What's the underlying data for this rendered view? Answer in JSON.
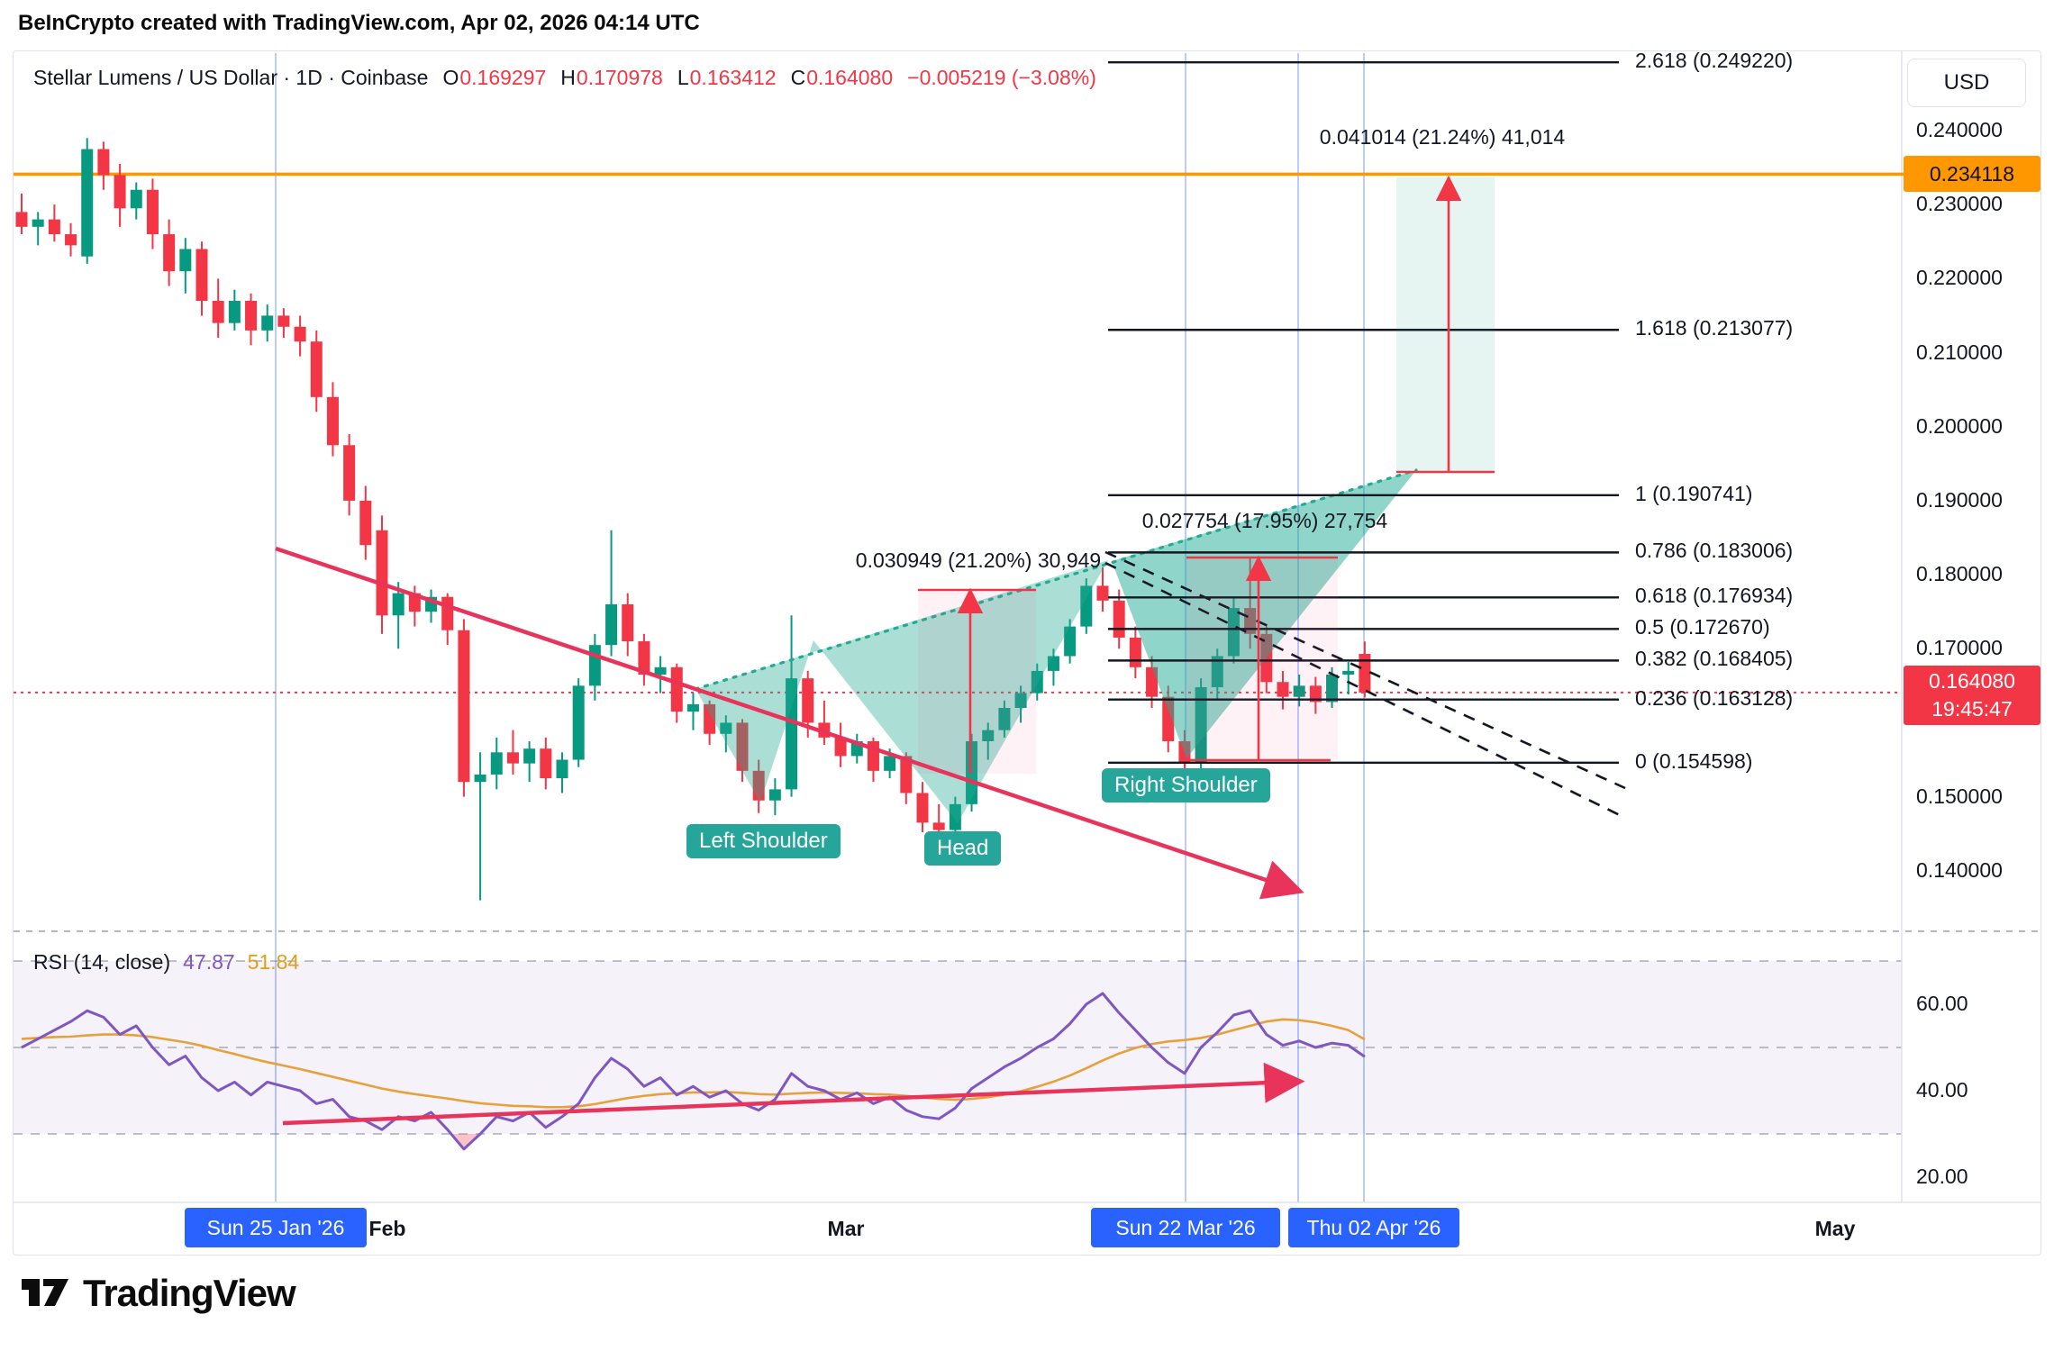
{
  "attribution": "BeInCrypto created with TradingView.com, Apr 02, 2026 04:14 UTC",
  "legend": {
    "title": "Stellar Lumens / US Dollar · 1D · Coinbase",
    "ohlc": [
      {
        "label": "O",
        "value": "0.169297"
      },
      {
        "label": "H",
        "value": "0.170978"
      },
      {
        "label": "L",
        "value": "0.163412"
      },
      {
        "label": "C",
        "value": "0.164080"
      }
    ],
    "change": "−0.005219 (−3.08%)"
  },
  "currency_button": "USD",
  "pattern_labels": {
    "left": "Left Shoulder",
    "head": "Head",
    "right": "Right Shoulder"
  },
  "annotations": {
    "projection": "0.041014 (21.24%) 41,014",
    "shoulder": "0.027754 (17.95%) 27,754",
    "head": "0.030949 (21.20%) 30,949"
  },
  "price_tags": {
    "alert": "0.234118",
    "last": "0.164080",
    "countdown": "19:45:47"
  },
  "rsi_legend": {
    "name": "RSI (14, close)",
    "value": "47.87",
    "ma": "51.84"
  },
  "time_axis": {
    "chips": [
      "Sun 25 Jan '26",
      "Sun 22 Mar '26",
      "Thu 02 Apr '26"
    ],
    "months": [
      "Feb",
      "Mar",
      "May"
    ]
  },
  "footer": {
    "brand": "TradingView"
  },
  "colors": {
    "up": "#089981",
    "down": "#f23645",
    "teal": "#22ab94",
    "orange": "#ff9800",
    "blue_chip": "#2962ff",
    "rsi": "#7e57c2",
    "rsi_ma": "#e7a13a",
    "arrow": "#e8335a"
  },
  "chart_data": {
    "type": "candlestick+rsi",
    "title": "Stellar Lumens / US Dollar · 1D · Coinbase",
    "price_ticks": [
      {
        "label": "0.240000",
        "price": 0.24
      },
      {
        "label": "0.230000",
        "price": 0.23
      },
      {
        "label": "0.220000",
        "price": 0.22
      },
      {
        "label": "0.210000",
        "price": 0.21
      },
      {
        "label": "0.200000",
        "price": 0.2
      },
      {
        "label": "0.190000",
        "price": 0.19
      },
      {
        "label": "0.180000",
        "price": 0.18
      },
      {
        "label": "0.170000",
        "price": 0.17
      },
      {
        "label": "0.150000",
        "price": 0.15
      },
      {
        "label": "0.140000",
        "price": 0.14
      }
    ],
    "fib_levels": [
      {
        "label": "2.618 (0.249220)",
        "price": 0.24922
      },
      {
        "label": "1.618 (0.213077)",
        "price": 0.213077
      },
      {
        "label": "1 (0.190741)",
        "price": 0.190741
      },
      {
        "label": "0.786 (0.183006)",
        "price": 0.183006
      },
      {
        "label": "0.618 (0.176934)",
        "price": 0.176934
      },
      {
        "label": "0.5 (0.172670)",
        "price": 0.17267
      },
      {
        "label": "0.382 (0.168405)",
        "price": 0.168405
      },
      {
        "label": "0.236 (0.163128)",
        "price": 0.163128
      },
      {
        "label": "0 (0.154598)",
        "price": 0.154598
      }
    ],
    "alert_price": 0.234118,
    "last_price": 0.16408,
    "candles": [
      [
        0.229,
        0.2315,
        0.226,
        0.227
      ],
      [
        0.227,
        0.229,
        0.2245,
        0.228
      ],
      [
        0.228,
        0.23,
        0.225,
        0.226
      ],
      [
        0.226,
        0.2275,
        0.223,
        0.2245
      ],
      [
        0.223,
        0.239,
        0.222,
        0.2375
      ],
      [
        0.2375,
        0.2385,
        0.232,
        0.234
      ],
      [
        0.234,
        0.2355,
        0.227,
        0.2295
      ],
      [
        0.2295,
        0.233,
        0.228,
        0.232
      ],
      [
        0.232,
        0.2335,
        0.224,
        0.226
      ],
      [
        0.226,
        0.228,
        0.219,
        0.221
      ],
      [
        0.221,
        0.2255,
        0.218,
        0.224
      ],
      [
        0.224,
        0.225,
        0.215,
        0.217
      ],
      [
        0.217,
        0.22,
        0.212,
        0.214
      ],
      [
        0.214,
        0.2185,
        0.213,
        0.217
      ],
      [
        0.217,
        0.218,
        0.211,
        0.213
      ],
      [
        0.213,
        0.2165,
        0.2115,
        0.215
      ],
      [
        0.215,
        0.216,
        0.212,
        0.2135
      ],
      [
        0.2135,
        0.215,
        0.2095,
        0.2115
      ],
      [
        0.2115,
        0.213,
        0.202,
        0.204
      ],
      [
        0.204,
        0.206,
        0.196,
        0.1975
      ],
      [
        0.1975,
        0.199,
        0.188,
        0.19
      ],
      [
        0.19,
        0.192,
        0.182,
        0.184
      ],
      [
        0.186,
        0.188,
        0.172,
        0.1745
      ],
      [
        0.1745,
        0.179,
        0.17,
        0.1775
      ],
      [
        0.1775,
        0.1785,
        0.173,
        0.175
      ],
      [
        0.175,
        0.178,
        0.1735,
        0.177
      ],
      [
        0.177,
        0.1775,
        0.1705,
        0.1725
      ],
      [
        0.1725,
        0.174,
        0.15,
        0.152
      ],
      [
        0.152,
        0.156,
        0.136,
        0.153
      ],
      [
        0.153,
        0.158,
        0.151,
        0.156
      ],
      [
        0.156,
        0.159,
        0.153,
        0.1545
      ],
      [
        0.1545,
        0.1575,
        0.152,
        0.1565
      ],
      [
        0.1565,
        0.158,
        0.151,
        0.1525
      ],
      [
        0.1525,
        0.156,
        0.1505,
        0.155
      ],
      [
        0.155,
        0.166,
        0.154,
        0.165
      ],
      [
        0.165,
        0.172,
        0.163,
        0.1705
      ],
      [
        0.1705,
        0.186,
        0.169,
        0.176
      ],
      [
        0.176,
        0.1775,
        0.169,
        0.171
      ],
      [
        0.171,
        0.172,
        0.165,
        0.1665
      ],
      [
        0.1665,
        0.169,
        0.164,
        0.1675
      ],
      [
        0.1675,
        0.168,
        0.16,
        0.1615
      ],
      [
        0.1615,
        0.164,
        0.159,
        0.1625
      ],
      [
        0.1625,
        0.163,
        0.157,
        0.1585
      ],
      [
        0.1585,
        0.161,
        0.156,
        0.16
      ],
      [
        0.16,
        0.1605,
        0.152,
        0.1535
      ],
      [
        0.1535,
        0.155,
        0.1478,
        0.1495
      ],
      [
        0.1495,
        0.1525,
        0.1475,
        0.151
      ],
      [
        0.151,
        0.1745,
        0.15,
        0.166
      ],
      [
        0.166,
        0.167,
        0.158,
        0.16
      ],
      [
        0.16,
        0.163,
        0.157,
        0.158
      ],
      [
        0.158,
        0.16,
        0.154,
        0.1555
      ],
      [
        0.1555,
        0.1585,
        0.1545,
        0.1575
      ],
      [
        0.1575,
        0.158,
        0.152,
        0.1535
      ],
      [
        0.1535,
        0.1565,
        0.1525,
        0.1555
      ],
      [
        0.1555,
        0.156,
        0.149,
        0.1505
      ],
      [
        0.1505,
        0.152,
        0.1452,
        0.1465
      ],
      [
        0.1465,
        0.149,
        0.1445,
        0.1455
      ],
      [
        0.1455,
        0.15,
        0.1448,
        0.149
      ],
      [
        0.149,
        0.1585,
        0.148,
        0.1575
      ],
      [
        0.1575,
        0.16,
        0.155,
        0.159
      ],
      [
        0.159,
        0.163,
        0.158,
        0.162
      ],
      [
        0.162,
        0.165,
        0.16,
        0.164
      ],
      [
        0.164,
        0.168,
        0.163,
        0.167
      ],
      [
        0.167,
        0.17,
        0.165,
        0.169
      ],
      [
        0.169,
        0.174,
        0.168,
        0.173
      ],
      [
        0.173,
        0.1795,
        0.172,
        0.1785
      ],
      [
        0.1785,
        0.181,
        0.175,
        0.1765
      ],
      [
        0.1765,
        0.178,
        0.17,
        0.1715
      ],
      [
        0.1715,
        0.173,
        0.166,
        0.1675
      ],
      [
        0.1675,
        0.169,
        0.162,
        0.1635
      ],
      [
        0.1635,
        0.165,
        0.156,
        0.1575
      ],
      [
        0.1575,
        0.159,
        0.1538,
        0.1546
      ],
      [
        0.1546,
        0.166,
        0.1535,
        0.1648
      ],
      [
        0.1648,
        0.17,
        0.163,
        0.169
      ],
      [
        0.169,
        0.177,
        0.168,
        0.1755
      ],
      [
        0.1755,
        0.1822,
        0.17,
        0.172
      ],
      [
        0.172,
        0.173,
        0.164,
        0.1655
      ],
      [
        0.1655,
        0.167,
        0.1618,
        0.1635
      ],
      [
        0.1635,
        0.1665,
        0.1622,
        0.165
      ],
      [
        0.165,
        0.1662,
        0.1612,
        0.1628
      ],
      [
        0.1628,
        0.1675,
        0.162,
        0.1665
      ],
      [
        0.1665,
        0.1682,
        0.1638,
        0.167
      ],
      [
        0.169297,
        0.170978,
        0.163412,
        0.16408
      ]
    ],
    "rsi": [
      50,
      52,
      54,
      56,
      58.5,
      57,
      53,
      55,
      50,
      46,
      48,
      43,
      40,
      42,
      39,
      42,
      41,
      40,
      37,
      38,
      34,
      33,
      31,
      34,
      33,
      35,
      31,
      26.5,
      30,
      34,
      33,
      35,
      31.5,
      34,
      37,
      43,
      47.5,
      45,
      41,
      43,
      39,
      41,
      38.5,
      40,
      37,
      35.5,
      38,
      44,
      41,
      40,
      38,
      39.5,
      37,
      38.5,
      35.5,
      34,
      33.5,
      36,
      40.5,
      43,
      45.5,
      47.5,
      50,
      52,
      55.5,
      60,
      62.5,
      58,
      54,
      50,
      46.5,
      44,
      50,
      53.5,
      57.5,
      58.5,
      53,
      50.5,
      51.5,
      50,
      51,
      50.5,
      47.87
    ],
    "rsi_ma": [
      52,
      52.2,
      52.4,
      52.5,
      52.8,
      53,
      53,
      52.8,
      52.4,
      51.8,
      51.2,
      50.4,
      49.4,
      48.5,
      47.5,
      46.6,
      45.8,
      45,
      44.1,
      43.2,
      42.3,
      41.4,
      40.5,
      39.8,
      39.2,
      38.7,
      38.2,
      37.6,
      37.1,
      36.8,
      36.5,
      36.4,
      36.2,
      36.2,
      36.4,
      36.9,
      37.6,
      38.3,
      38.8,
      39.2,
      39.4,
      39.6,
      39.6,
      39.7,
      39.5,
      39.2,
      39.1,
      39.3,
      39.5,
      39.6,
      39.5,
      39.4,
      39.2,
      39.1,
      38.8,
      38.4,
      38.1,
      37.9,
      38.1,
      38.5,
      39.1,
      39.9,
      40.9,
      42.1,
      43.5,
      45.2,
      47,
      48.6,
      49.9,
      50.8,
      51.4,
      51.7,
      52.2,
      53,
      54,
      55,
      56,
      56.5,
      56.3,
      55.8,
      55,
      54,
      51.84
    ],
    "rsi_ticks": [
      {
        "label": "60.00",
        "value": 60
      },
      {
        "label": "40.00",
        "value": 40
      },
      {
        "label": "20.00",
        "value": 20
      }
    ],
    "rsi_band": [
      30,
      70
    ]
  }
}
